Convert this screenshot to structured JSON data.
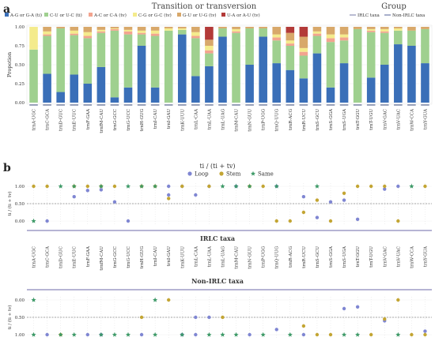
{
  "panels": {
    "a": "a",
    "b": "b"
  },
  "header": {
    "title": "Transition or transversion",
    "group_title": "Group"
  },
  "legend": {
    "categories": [
      {
        "label": "A-G or G-A (ti)",
        "color": "#3a6fb8"
      },
      {
        "label": "C-U or U-C (ti)",
        "color": "#9fd08f"
      },
      {
        "label": "A-C or C-A (tv)",
        "color": "#f3a48f"
      },
      {
        "label": "C-G or G-C (tv)",
        "color": "#f4eb8c"
      },
      {
        "label": "G-U or U-G (tv)",
        "color": "#d8a86a"
      },
      {
        "label": "U-A or A-U (tv)",
        "color": "#b33a38"
      }
    ],
    "groups": [
      {
        "label": "IRLC taxa",
        "color": "#8a8fb3"
      },
      {
        "label": "Non-IRLC taxa",
        "color": "#6e7aa8"
      }
    ],
    "point_types": [
      {
        "label": "Loop",
        "color": "#7f86d2"
      },
      {
        "label": "Stem",
        "color": "#c3a533"
      },
      {
        "label": "Same",
        "color": "#3e9a68"
      }
    ]
  },
  "chart_data": [
    {
      "type": "bar",
      "stacked": true,
      "title": "Transition or transversion",
      "ylabel": "Propotion",
      "ylim": [
        0,
        1
      ],
      "yticks": [
        "0.00",
        "0.25",
        "0.50",
        "0.75",
        "1.00"
      ],
      "categories": [
        "trnA-UGC",
        "trnC-GCA",
        "trnD-GUC",
        "trnE-UUC",
        "trnF-GAA",
        "trnfM-CAU",
        "trnG-GCC",
        "trnG-UCC",
        "trnH-GUG",
        "trnI-CAU",
        "trnI-GAU",
        "trnK-UUU",
        "trnL-CAA",
        "trnL-UAA",
        "trnL-UAG",
        "trnM-CAU",
        "trnN-GUU",
        "trnP-UGG",
        "trnQ-UUG",
        "trnR-ACG",
        "trnR-UCU",
        "trnS-GCU",
        "trnS-GGA",
        "trnS-UGA",
        "trnT-GGU",
        "trnT-UGU",
        "trnV-GAC",
        "trnV-UAC",
        "trnW-CCA",
        "trnY-GUA"
      ],
      "series": [
        {
          "name": "A-G or G-A (ti)",
          "values": [
            0.0,
            0.38,
            0.14,
            0.37,
            0.25,
            0.47,
            0.07,
            0.2,
            0.75,
            0.2,
            0.0,
            0.9,
            0.35,
            0.48,
            0.87,
            0.0,
            0.5,
            0.87,
            0.52,
            0.43,
            0.32,
            0.65,
            0.2,
            0.52,
            0.0,
            0.33,
            0.5,
            0.77,
            0.75,
            0.52
          ]
        },
        {
          "name": "C-U or U-C (ti)",
          "values": [
            0.7,
            0.5,
            0.84,
            0.52,
            0.6,
            0.45,
            0.88,
            0.7,
            0.15,
            0.68,
            0.95,
            0.06,
            0.5,
            0.17,
            0.11,
            0.92,
            0.48,
            0.11,
            0.3,
            0.32,
            0.3,
            0.23,
            0.6,
            0.3,
            0.97,
            0.6,
            0.42,
            0.18,
            0.2,
            0.45
          ]
        },
        {
          "name": "A-C or C-A (tv)",
          "values": [
            0.0,
            0.02,
            0.0,
            0.02,
            0.03,
            0.02,
            0.02,
            0.04,
            0.02,
            0.03,
            0.0,
            0.0,
            0.03,
            0.04,
            0.0,
            0.02,
            0.0,
            0.0,
            0.04,
            0.03,
            0.05,
            0.03,
            0.05,
            0.04,
            0.0,
            0.02,
            0.02,
            0.0,
            0.0,
            0.0
          ]
        },
        {
          "name": "C-G or G-C (tv)",
          "values": [
            0.3,
            0.04,
            0.0,
            0.04,
            0.05,
            0.02,
            0.01,
            0.02,
            0.03,
            0.04,
            0.03,
            0.02,
            0.05,
            0.06,
            0.0,
            0.03,
            0.0,
            0.0,
            0.04,
            0.04,
            0.05,
            0.03,
            0.05,
            0.04,
            0.0,
            0.02,
            0.03,
            0.03,
            0.0,
            0.0
          ]
        },
        {
          "name": "G-U or U-G (tv)",
          "values": [
            0.0,
            0.06,
            0.02,
            0.05,
            0.07,
            0.04,
            0.02,
            0.04,
            0.05,
            0.05,
            0.02,
            0.02,
            0.07,
            0.08,
            0.02,
            0.03,
            0.02,
            0.02,
            0.1,
            0.1,
            0.15,
            0.06,
            0.1,
            0.1,
            0.03,
            0.03,
            0.03,
            0.02,
            0.05,
            0.03
          ]
        },
        {
          "name": "U-A or A-U (tv)",
          "values": [
            0.0,
            0.0,
            0.0,
            0.0,
            0.0,
            0.0,
            0.0,
            0.0,
            0.0,
            0.0,
            0.0,
            0.0,
            0.0,
            0.17,
            0.0,
            0.0,
            0.0,
            0.0,
            0.0,
            0.08,
            0.13,
            0.0,
            0.0,
            0.0,
            0.0,
            0.0,
            0.0,
            0.0,
            0.0,
            0.0
          ]
        }
      ]
    },
    {
      "type": "scatter",
      "title": "ti / (ti + tv)",
      "group": "IRLC taxa",
      "ylabel": "ti / (ti + tv)",
      "ylim": [
        0,
        1
      ],
      "yticks": [
        "0.00",
        "0.50",
        "1.00"
      ],
      "dashed_reference": 0.5,
      "categories": [
        "trnA-UGC",
        "trnC-GCA",
        "trnD-GUC",
        "trnE-UUC",
        "trnF-GAA",
        "trnfM-CAU",
        "trnG-GCC",
        "trnG-UCC",
        "trnH-GUG",
        "trnI-CAU",
        "trnI-GAU",
        "trnK-UUU",
        "trnL-CAA",
        "trnL-UAA",
        "trnL-UAG",
        "trnM-CAU",
        "trnN-GUU",
        "trnP-UGG",
        "trnQ-UUG",
        "trnR-ACG",
        "trnR-UCU",
        "trnS-GCU",
        "trnS-GGA",
        "trnS-UGA",
        "trnT-GGU",
        "trnT-UGU",
        "trnV-GAC",
        "trnV-UAC",
        "trnW-CCA",
        "trnY-GUA"
      ],
      "series": [
        {
          "name": "Loop",
          "points": [
            [
              1,
              0.0
            ],
            [
              3,
              0.7
            ],
            [
              4,
              0.88
            ],
            [
              5,
              0.9
            ],
            [
              6,
              0.55
            ],
            [
              7,
              0.0
            ],
            [
              10,
              0.75
            ],
            [
              10,
              1.0
            ],
            [
              11,
              1.0
            ],
            [
              12,
              0.75
            ],
            [
              13,
              1.0
            ],
            [
              15,
              1.0
            ],
            [
              18,
              1.0
            ],
            [
              20,
              0.7
            ],
            [
              21,
              0.1
            ],
            [
              22,
              0.55
            ],
            [
              23,
              0.6
            ],
            [
              24,
              0.05
            ],
            [
              26,
              0.92
            ],
            [
              27,
              1.0
            ]
          ]
        },
        {
          "name": "Stem",
          "points": [
            [
              0,
              1.0
            ],
            [
              1,
              1.0
            ],
            [
              3,
              1.0
            ],
            [
              4,
              1.0
            ],
            [
              5,
              1.0
            ],
            [
              6,
              1.0
            ],
            [
              8,
              1.0
            ],
            [
              9,
              1.0
            ],
            [
              10,
              0.65
            ],
            [
              11,
              1.0
            ],
            [
              13,
              1.0
            ],
            [
              16,
              1.0
            ],
            [
              17,
              1.0
            ],
            [
              18,
              0.0
            ],
            [
              19,
              0.0
            ],
            [
              20,
              0.25
            ],
            [
              21,
              0.6
            ],
            [
              22,
              0.0
            ],
            [
              23,
              0.8
            ],
            [
              24,
              1.0
            ],
            [
              25,
              1.0
            ],
            [
              26,
              1.0
            ],
            [
              27,
              0.0
            ],
            [
              29,
              1.0
            ]
          ]
        },
        {
          "name": "Same",
          "points": [
            [
              0,
              0.0
            ],
            [
              2,
              1.0
            ],
            [
              3,
              1.0
            ],
            [
              5,
              1.0
            ],
            [
              7,
              1.0
            ],
            [
              8,
              1.0
            ],
            [
              9,
              1.0
            ],
            [
              14,
              1.0
            ],
            [
              15,
              1.0
            ],
            [
              16,
              1.0
            ],
            [
              18,
              1.0
            ],
            [
              21,
              1.0
            ],
            [
              28,
              1.0
            ]
          ]
        }
      ]
    },
    {
      "type": "scatter",
      "title": "",
      "group": "Non-IRLC taxa",
      "ylabel": "ti / (ti + tv)",
      "ylim": [
        0,
        1
      ],
      "yaxis_inverted": true,
      "yticks": [
        "0.00",
        "0.50",
        "1.00"
      ],
      "dashed_reference": 0.5,
      "categories": [
        "trnA-UGC",
        "trnC-GCA",
        "trnD-GUC",
        "trnE-UUC",
        "trnF-GAA",
        "trnfM-CAU",
        "trnG-GCC",
        "trnG-UCC",
        "trnH-GUG",
        "trnI-CAU",
        "trnI-GAU",
        "trnK-UUU",
        "trnL-CAA",
        "trnL-UAA",
        "trnL-UAG",
        "trnM-CAU",
        "trnN-GUU",
        "trnP-UGG",
        "trnQ-UUG",
        "trnR-ACG",
        "trnR-UCU",
        "trnS-GCU",
        "trnS-GGA",
        "trnS-UGA",
        "trnT-GGU",
        "trnT-UGU",
        "trnV-GAC",
        "trnV-UAC",
        "trnW-CCA",
        "trnY-GUA"
      ],
      "series": [
        {
          "name": "Loop",
          "points": [
            [
              1,
              1.0
            ],
            [
              4,
              1.0
            ],
            [
              5,
              1.0
            ],
            [
              8,
              1.0
            ],
            [
              11,
              1.0
            ],
            [
              12,
              0.5
            ],
            [
              13,
              0.5
            ],
            [
              16,
              1.0
            ],
            [
              18,
              0.85
            ],
            [
              20,
              1.0
            ],
            [
              23,
              0.25
            ],
            [
              24,
              0.2
            ],
            [
              26,
              0.6
            ],
            [
              29,
              0.9
            ],
            [
              12,
              1.0
            ]
          ]
        },
        {
          "name": "Stem",
          "points": [
            [
              2,
              1.0
            ],
            [
              8,
              0.5
            ],
            [
              10,
              0.0
            ],
            [
              14,
              0.5
            ],
            [
              20,
              0.75
            ],
            [
              21,
              1.0
            ],
            [
              22,
              1.0
            ],
            [
              25,
              1.0
            ],
            [
              26,
              0.55
            ],
            [
              27,
              0.0
            ],
            [
              28,
              1.0
            ],
            [
              29,
              1.0
            ]
          ]
        },
        {
          "name": "Same",
          "points": [
            [
              0,
              0.0
            ],
            [
              0,
              1.0
            ],
            [
              2,
              1.0
            ],
            [
              3,
              1.0
            ],
            [
              5,
              1.0
            ],
            [
              6,
              1.0
            ],
            [
              7,
              1.0
            ],
            [
              9,
              0.0
            ],
            [
              9,
              1.0
            ],
            [
              11,
              1.0
            ],
            [
              13,
              1.0
            ],
            [
              14,
              1.0
            ],
            [
              15,
              1.0
            ],
            [
              17,
              1.0
            ],
            [
              19,
              1.0
            ],
            [
              23,
              1.0
            ],
            [
              24,
              1.0
            ],
            [
              27,
              1.0
            ]
          ]
        }
      ]
    }
  ]
}
